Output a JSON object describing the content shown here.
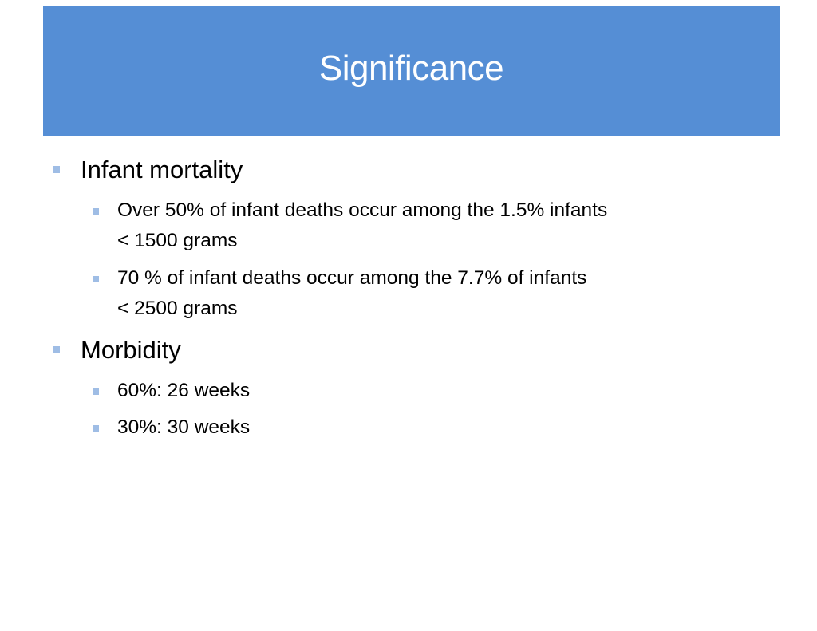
{
  "slide": {
    "title": "Significance",
    "title_bar_color": "#558ed5",
    "bullet_color": "#9fbde5",
    "items": [
      {
        "text": "Infant mortality",
        "sub": [
          {
            "line1": "Over 50% of infant deaths occur among the 1.5% infants",
            "line2": "< 1500 grams"
          },
          {
            "line1": "70 % of infant deaths occur among the 7.7% of infants",
            "line2": "< 2500 grams"
          }
        ]
      },
      {
        "text": "Morbidity",
        "sub": [
          {
            "line1": "60%:  26 weeks"
          },
          {
            "line1": "30%:  30 weeks"
          }
        ]
      }
    ]
  }
}
